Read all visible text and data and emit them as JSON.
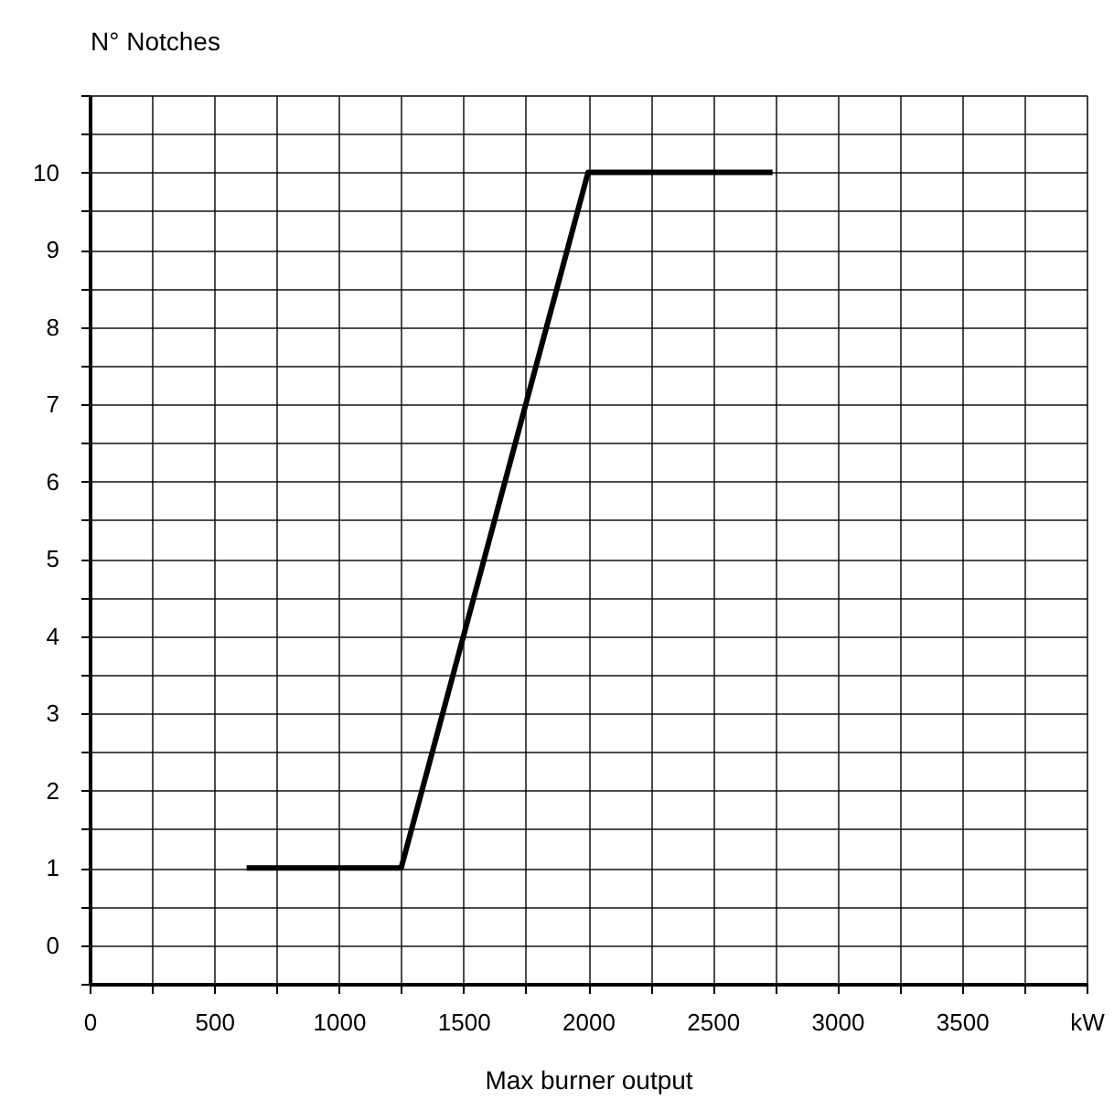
{
  "chart_data": {
    "type": "line",
    "xlabel": "Max burner output",
    "ylabel": "N° Notches",
    "x": [
      630,
      1250,
      2000,
      2740
    ],
    "series": [
      {
        "color": "#000000",
        "values": [
          1,
          1,
          10,
          10
        ]
      }
    ],
    "xlim": [
      0,
      4000
    ],
    "xticks": [
      0,
      {
        "value": 250,
        "label": null
      },
      500,
      {
        "value": 750,
        "label": null
      },
      1000,
      {
        "value": 1250,
        "label": null
      },
      1500,
      {
        "value": 1750,
        "label": null
      },
      2000,
      {
        "value": 2250,
        "label": null
      },
      2500,
      {
        "value": 2750,
        "label": null
      },
      3000,
      {
        "value": 3250,
        "label": null
      },
      3500,
      {
        "value": 3750,
        "label": null
      },
      {
        "value": 4000,
        "label": "kW"
      }
    ],
    "ylim": [
      -0.5,
      11
    ],
    "yticks": [
      {
        "value": -0.5,
        "label": null
      },
      0,
      {
        "value": 0.5,
        "label": null
      },
      1,
      {
        "value": 1.5,
        "label": null
      },
      2,
      {
        "value": 2.5,
        "label": null
      },
      3,
      {
        "value": 3.5,
        "label": null
      },
      4,
      {
        "value": 4.5,
        "label": null
      },
      5,
      {
        "value": 5.5,
        "label": null
      },
      6,
      {
        "value": 6.5,
        "label": null
      },
      7,
      {
        "value": 7.5,
        "label": null
      },
      8,
      {
        "value": 8.5,
        "label": null
      },
      9,
      {
        "value": 9.5,
        "label": null
      },
      10,
      {
        "value": 10.5,
        "label": null
      },
      {
        "value": 11,
        "label": null
      }
    ],
    "grid": true,
    "marker": "none",
    "line_style": "solid"
  }
}
